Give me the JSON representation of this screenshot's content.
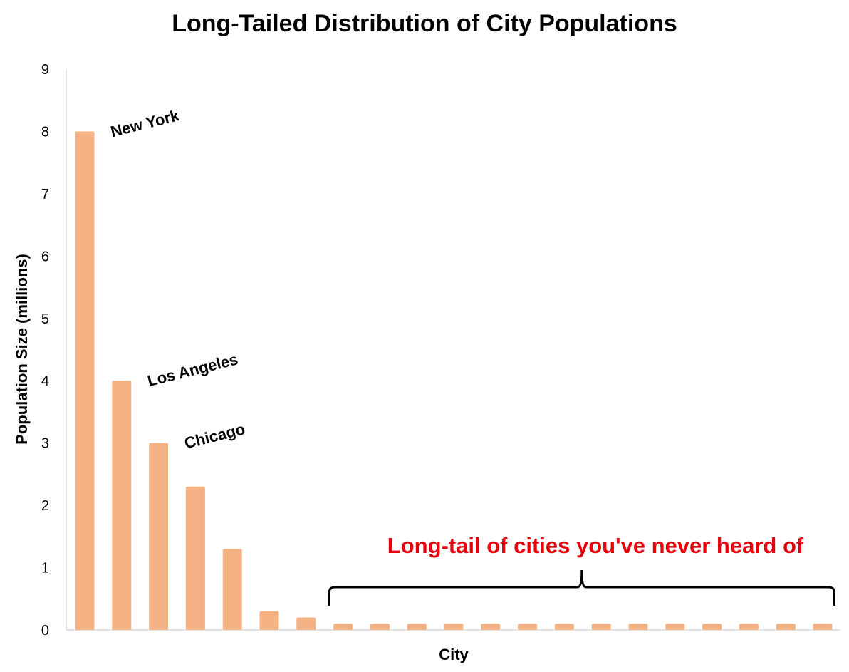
{
  "chart_data": {
    "type": "bar",
    "title": "Long-Tailed Distribution of City Populations",
    "xlabel": "City",
    "ylabel": "Population Size  (millions)",
    "ylim": [
      0,
      9
    ],
    "yticks": [
      "0",
      "1",
      "2",
      "3",
      "4",
      "5",
      "6",
      "7",
      "8",
      "9"
    ],
    "grid": false,
    "values": [
      8.0,
      4.0,
      3.0,
      2.3,
      1.3,
      0.3,
      0.2,
      0.1,
      0.1,
      0.1,
      0.1,
      0.1,
      0.1,
      0.1,
      0.1,
      0.1,
      0.1,
      0.1,
      0.1,
      0.1,
      0.1
    ],
    "bar_labels": [
      {
        "index": 0,
        "text": "New York"
      },
      {
        "index": 1,
        "text": "Los Angeles"
      },
      {
        "index": 2,
        "text": "Chicago"
      }
    ],
    "annotation": {
      "text": "Long-tail of cities you've never heard of",
      "color": "#e8000b",
      "brace_from_index": 7,
      "brace_to_index": 20
    },
    "colors": {
      "bar": "#f4b183",
      "axis": "#d9d9d9",
      "text": "#000000"
    }
  }
}
